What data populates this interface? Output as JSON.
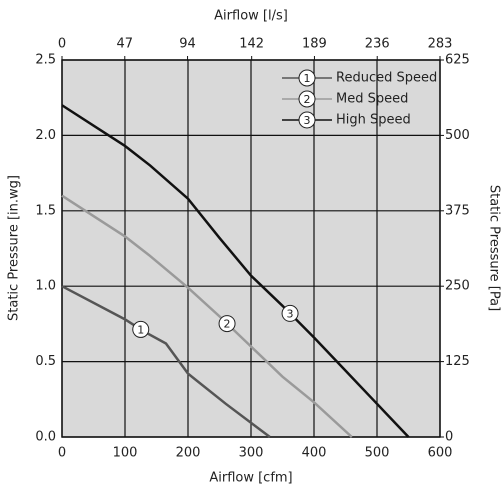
{
  "chart_data": {
    "type": "line",
    "xlabel": "Airflow [cfm]",
    "x2label": "Airflow [l/s]",
    "ylabel": "Static Pressure [in.wg]",
    "y2label": "Static Pressure [Pa]",
    "xlim": [
      0,
      600
    ],
    "xticks": [
      0,
      100,
      200,
      300,
      400,
      500,
      600
    ],
    "x2lim": [
      0,
      283
    ],
    "x2ticks": [
      0,
      47,
      94,
      142,
      189,
      236,
      283
    ],
    "ylim": [
      0,
      2.5
    ],
    "yticks": [
      {
        "value": 0,
        "label": "0.0"
      },
      0.5,
      {
        "value": 1,
        "label": "1.0"
      },
      1.5,
      {
        "value": 2,
        "label": "2.0"
      },
      2.5
    ],
    "y2lim": [
      0,
      625
    ],
    "y2ticks": [
      0,
      125,
      250,
      375,
      500,
      625
    ],
    "grid": true,
    "legend": "upper right",
    "series": [
      {
        "name": "Reduced Speed",
        "label": "1",
        "color": "#555555",
        "x": [
          0,
          100,
          130,
          165,
          200,
          260,
          330
        ],
        "values": [
          1.0,
          0.78,
          0.7,
          0.62,
          0.42,
          0.22,
          0
        ]
      },
      {
        "name": "Med Speed",
        "label": "2",
        "color": "#9a9a9a",
        "x": [
          0,
          100,
          140,
          200,
          250,
          300,
          350,
          400,
          460
        ],
        "values": [
          1.6,
          1.33,
          1.2,
          0.99,
          0.8,
          0.6,
          0.4,
          0.23,
          0
        ]
      },
      {
        "name": "High Speed",
        "label": "3",
        "color": "#111111",
        "x": [
          0,
          100,
          140,
          200,
          250,
          300,
          350,
          400,
          450,
          500,
          550
        ],
        "values": [
          2.2,
          1.93,
          1.8,
          1.58,
          1.32,
          1.07,
          0.87,
          0.66,
          0.44,
          0.22,
          0
        ]
      }
    ]
  }
}
